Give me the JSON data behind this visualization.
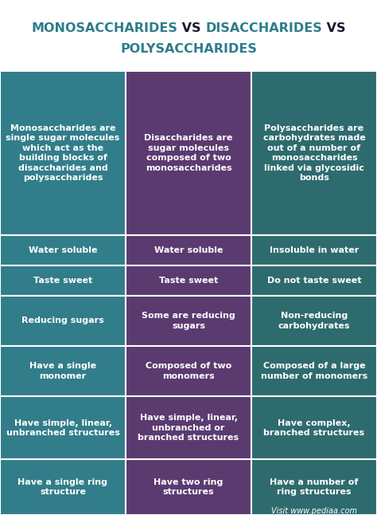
{
  "title_color_teal": "#2e7d8a",
  "title_color_dark": "#1a1a2e",
  "bg_color": "#ffffff",
  "col_colors": [
    "#327d8a",
    "#5b3a70",
    "#2e6b6e"
  ],
  "rows": [
    {
      "col0": "Monosaccharides are\nsingle sugar molecules\nwhich act as the\nbuilding blocks of\ndisaccharides and\npolysaccharides",
      "col1": "Disaccharides are\nsugar molecules\ncomposed of two\nmonosaccharides",
      "col2": "Polysaccharides are\ncarbohydrates made\nout of a number of\nmonosaccharides\nlinked via glycosidic\nbonds"
    },
    {
      "col0": "Water soluble",
      "col1": "Water soluble",
      "col2": "Insoluble in water"
    },
    {
      "col0": "Taste sweet",
      "col1": "Taste sweet",
      "col2": "Do not taste sweet"
    },
    {
      "col0": "Reducing sugars",
      "col1": "Some are reducing\nsugars",
      "col2": "Non-reducing\ncarbohydrates"
    },
    {
      "col0": "Have a single\nmonomer",
      "col1": "Composed of two\nmonomers",
      "col2": "Composed of a large\nnumber of monomers"
    },
    {
      "col0": "Have simple, linear,\nunbranched structures",
      "col1": "Have simple, linear,\nunbranched or\nbranched structures",
      "col2": "Have complex,\nbranched structures"
    },
    {
      "col0": "Have a single ring\nstructure",
      "col1": "Have two ring\nstructures",
      "col2": "Have a number of\nring structures"
    }
  ],
  "footer_text": "Visit www.pediaa.com",
  "text_color": "#ffffff",
  "title_fontsize": 11.5,
  "cell_fontsize": 8.0,
  "footer_fontsize": 7.0,
  "row_heights_raw": [
    6.5,
    1.2,
    1.2,
    2.0,
    2.0,
    2.5,
    2.2
  ]
}
